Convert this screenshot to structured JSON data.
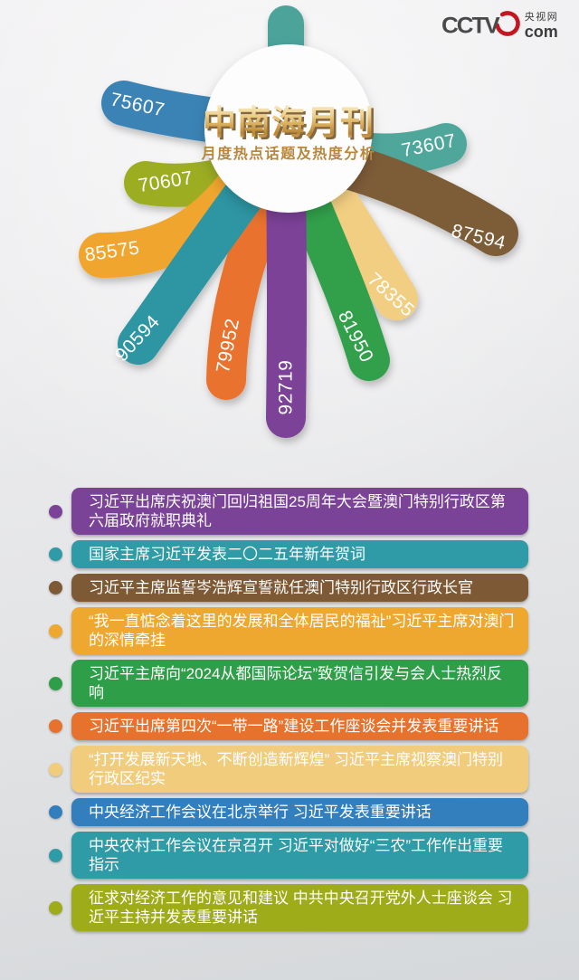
{
  "logo": {
    "cctv": "CCTV",
    "site": "央视网",
    "com": "com",
    "red": "#C4161E",
    "text_color": "#4A4A4A"
  },
  "flower": {
    "title": "中南海月刊",
    "subtitle": "月度热点话题及热度分析",
    "gold_light": "#FBF0CC",
    "gold_dark": "#B98434",
    "subtitle_color": "#B8873B",
    "title_shadow_color": "#6E4E20",
    "hub_color": "#FDFDFD",
    "stub_color": "#4BA39A",
    "petals": [
      {
        "value": "92719",
        "color": "#7C4298"
      },
      {
        "value": "90594",
        "color": "#2E95A3"
      },
      {
        "value": "87594",
        "color": "#7D5C37"
      },
      {
        "value": "85575",
        "color": "#F0A62E"
      },
      {
        "value": "81950",
        "color": "#30A04B"
      },
      {
        "value": "79952",
        "color": "#E8722E"
      },
      {
        "value": "78355",
        "color": "#F2CE82"
      },
      {
        "value": "75607",
        "color": "#3B83B5"
      },
      {
        "value": "73607",
        "color": "#4FA79B"
      },
      {
        "value": "70607",
        "color": "#9CAD20"
      }
    ]
  },
  "topics": [
    {
      "text": "习近平出席庆祝澳门回归祖国25周年大会暨澳门特别行政区第六届政府就职典礼",
      "color": "#7B4397"
    },
    {
      "text": "国家主席习近平发表二〇二五年新年贺词",
      "color": "#2F9BA7"
    },
    {
      "text": "习近平主席监誓岑浩辉宣誓就任澳门特别行政区行政长官",
      "color": "#7D5A35"
    },
    {
      "text": "“我一直惦念着这里的发展和全体居民的福祉”习近平主席对澳门的深情牵挂",
      "color": "#EFA82F"
    },
    {
      "text": "习近平主席向“2024从都国际论坛”致贺信引发与会人士热烈反响",
      "color": "#2F9E49"
    },
    {
      "text": "习近平出席第四次“一带一路”建设工作座谈会并发表重要讲话",
      "color": "#E7722D"
    },
    {
      "text": "“打开发展新天地、不断创造新辉煌” 习近平主席视察澳门特别行政区纪实",
      "color": "#F2CC7D"
    },
    {
      "text": "中央经济工作会议在北京举行 习近平发表重要讲话",
      "color": "#337FBE"
    },
    {
      "text": "中央农村工作会议在京召开 习近平对做好“三农”工作作出重要指示",
      "color": "#2F9BA7"
    },
    {
      "text": "征求对经济工作的意见和建议 中共中央召开党外人士座谈会 习近平主持并发表重要讲话",
      "color": "#9FAC19"
    }
  ],
  "chart_data": {
    "type": "bar",
    "title": "中南海月刊",
    "subtitle": "月度热点话题及热度分析",
    "legend_position": "none",
    "grid": false,
    "categories": [
      "习近平出席庆祝澳门回归祖国25周年大会暨澳门特别行政区第六届政府就职典礼",
      "国家主席习近平发表二〇二五年新年贺词",
      "习近平主席监誓岑浩辉宣誓就任澳门特别行政区行政长官",
      "“我一直惦念着这里的发展和全体居民的福祉”习近平主席对澳门的深情牵挂",
      "习近平主席向“2024从都国际论坛”致贺信引发与会人士热烈反响",
      "习近平出席第四次“一带一路”建设工作座谈会并发表重要讲话",
      "“打开发展新天地、不断创造新辉煌” 习近平主席视察澳门特别行政区纪实",
      "中央经济工作会议在北京举行 习近平发表重要讲话",
      "中央农村工作会议在京召开 习近平对做好“三农”工作作出重要指示",
      "征求对经济工作的意见和建议 中共中央召开党外人士座谈会 习近平主持并发表重要讲话"
    ],
    "values": [
      92719,
      90594,
      87594,
      85575,
      81950,
      79952,
      78355,
      75607,
      73607,
      70607
    ],
    "colors": [
      "#7C4298",
      "#2E95A3",
      "#7D5C37",
      "#F0A62E",
      "#30A04B",
      "#E8722E",
      "#F2CE82",
      "#3B83B5",
      "#4FA79B",
      "#9CAD20"
    ]
  }
}
